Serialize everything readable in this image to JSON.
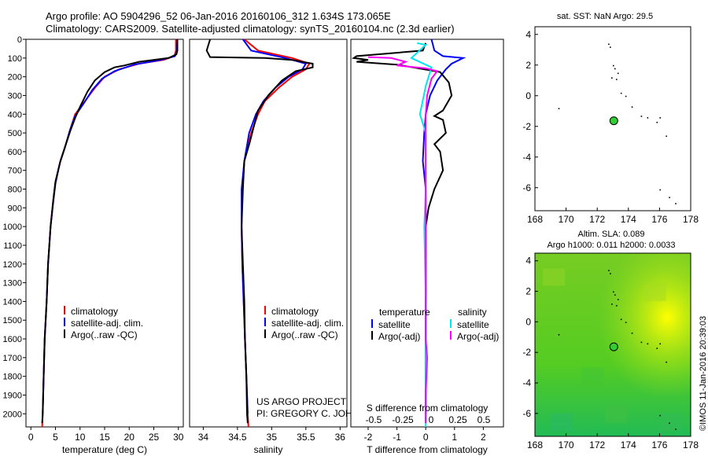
{
  "titles": {
    "line1": "Argo profile: AO 5904296_52 06-Jan-2016 20160106_312 1.634S 173.065E",
    "line2": "Climatology: CARS2009. Satellite-adjusted climatology: synTS_20160104.nc (2.3d earlier)"
  },
  "colors": {
    "clim": "#ff0000",
    "sat": "#0000ff",
    "argo": "#000000",
    "cyan": "#00e5ee",
    "magenta": "#ff00ff",
    "marker": "#33cc33"
  },
  "chart_data": [
    {
      "type": "line",
      "name": "temperature",
      "xlabel": "temperature (deg C)",
      "ylabel": "",
      "xlim": [
        -1,
        31
      ],
      "ylim": [
        2070,
        0
      ],
      "xticks": [
        "0",
        "5",
        "10",
        "15",
        "20",
        "25",
        "30"
      ],
      "yticks": [
        "0",
        "100",
        "200",
        "300",
        "400",
        "500",
        "600",
        "700",
        "800",
        "900",
        "1000",
        "1100",
        "1200",
        "1300",
        "1400",
        "1500",
        "1600",
        "1700",
        "1800",
        "1900",
        "2000"
      ],
      "legend": [
        "climatology",
        "satellite-adj. clim.",
        "Argo(..raw -QC)"
      ],
      "series": [
        {
          "name": "climatology",
          "color": "#ff0000",
          "points": [
            [
              29.5,
              0
            ],
            [
              29.5,
              60
            ],
            [
              29.2,
              90
            ],
            [
              27,
              110
            ],
            [
              22,
              130
            ],
            [
              18,
              160
            ],
            [
              15,
              200
            ],
            [
              13,
              260
            ],
            [
              11,
              330
            ],
            [
              9,
              400
            ],
            [
              8,
              480
            ],
            [
              7,
              570
            ],
            [
              6,
              650
            ],
            [
              5,
              760
            ],
            [
              4.5,
              870
            ],
            [
              4,
              1000
            ],
            [
              3.5,
              1200
            ],
            [
              3.2,
              1400
            ],
            [
              2.8,
              1600
            ],
            [
              2.6,
              1800
            ],
            [
              2.4,
              2000
            ],
            [
              2.3,
              2070
            ]
          ]
        },
        {
          "name": "satellite-adj. clim.",
          "color": "#0000ff",
          "points": [
            [
              29.8,
              0
            ],
            [
              29.7,
              60
            ],
            [
              29.3,
              90
            ],
            [
              26.5,
              110
            ],
            [
              21,
              135
            ],
            [
              17,
              170
            ],
            [
              14.5,
              210
            ],
            [
              12.5,
              270
            ],
            [
              10.8,
              340
            ],
            [
              9,
              410
            ],
            [
              7.9,
              490
            ],
            [
              6.9,
              580
            ],
            [
              5.9,
              660
            ],
            [
              5,
              770
            ],
            [
              4.5,
              880
            ],
            [
              4,
              1000
            ],
            [
              3.5,
              1200
            ],
            [
              3.2,
              1400
            ],
            [
              2.8,
              1600
            ],
            [
              2.6,
              1800
            ],
            [
              2.4,
              2000
            ]
          ]
        },
        {
          "name": "Argo(..raw -QC)",
          "color": "#000000",
          "points": [
            [
              29.8,
              0
            ],
            [
              29.8,
              60
            ],
            [
              29.6,
              80
            ],
            [
              28,
              100
            ],
            [
              22,
              120
            ],
            [
              19,
              140
            ],
            [
              17,
              150
            ],
            [
              15,
              175
            ],
            [
              13,
              220
            ],
            [
              11.5,
              280
            ],
            [
              10,
              360
            ],
            [
              9,
              420
            ],
            [
              8,
              490
            ],
            [
              7,
              570
            ],
            [
              6,
              650
            ],
            [
              5,
              760
            ],
            [
              4.5,
              870
            ],
            [
              4,
              1000
            ],
            [
              3.5,
              1200
            ],
            [
              3.2,
              1400
            ],
            [
              2.8,
              1600
            ],
            [
              2.6,
              1800
            ],
            [
              2.4,
              2000
            ],
            [
              2.3,
              2050
            ]
          ]
        }
      ]
    },
    {
      "type": "line",
      "name": "salinity",
      "xlabel": "salinity",
      "xlim": [
        33.8,
        36.1
      ],
      "ylim": [
        2070,
        0
      ],
      "xticks": [
        "34",
        "34.5",
        "35",
        "35.5",
        "36"
      ],
      "legend": [
        "climatology",
        "satellite-adj. clim.",
        "Argo(..raw -QC)"
      ],
      "annotation": [
        "US ARGO PROJECT",
        "PI: GREGORY C. JOHNSON"
      ],
      "series": [
        {
          "name": "climatology",
          "color": "#ff0000",
          "points": [
            [
              34.6,
              0
            ],
            [
              34.8,
              60
            ],
            [
              35.3,
              100
            ],
            [
              35.55,
              130
            ],
            [
              35.5,
              160
            ],
            [
              35.3,
              200
            ],
            [
              35.1,
              260
            ],
            [
              34.9,
              330
            ],
            [
              34.8,
              400
            ],
            [
              34.7,
              500
            ],
            [
              34.6,
              650
            ],
            [
              34.57,
              800
            ],
            [
              34.56,
              1000
            ],
            [
              34.57,
              1200
            ],
            [
              34.59,
              1400
            ],
            [
              34.61,
              1600
            ],
            [
              34.63,
              1800
            ],
            [
              34.65,
              2000
            ],
            [
              34.66,
              2070
            ]
          ]
        },
        {
          "name": "satellite-adj. clim.",
          "color": "#0000ff",
          "points": [
            [
              34.58,
              0
            ],
            [
              34.7,
              60
            ],
            [
              35.2,
              100
            ],
            [
              35.5,
              130
            ],
            [
              35.45,
              160
            ],
            [
              35.25,
              200
            ],
            [
              35.05,
              260
            ],
            [
              34.88,
              330
            ],
            [
              34.77,
              400
            ],
            [
              34.67,
              500
            ],
            [
              34.6,
              650
            ],
            [
              34.56,
              800
            ],
            [
              34.56,
              1000
            ],
            [
              34.57,
              1200
            ],
            [
              34.59,
              1400
            ],
            [
              34.61,
              1600
            ],
            [
              34.63,
              1800
            ],
            [
              34.65,
              2000
            ]
          ]
        },
        {
          "name": "Argo(..raw -QC)",
          "color": "#000000",
          "points": [
            [
              34.1,
              0
            ],
            [
              34.05,
              60
            ],
            [
              34.1,
              95
            ],
            [
              34.9,
              100
            ],
            [
              35.3,
              110
            ],
            [
              35.6,
              130
            ],
            [
              35.6,
              150
            ],
            [
              35.35,
              170
            ],
            [
              35.15,
              220
            ],
            [
              34.95,
              300
            ],
            [
              34.8,
              380
            ],
            [
              34.75,
              450
            ],
            [
              34.68,
              550
            ],
            [
              34.6,
              650
            ],
            [
              34.58,
              800
            ],
            [
              34.56,
              1000
            ],
            [
              34.58,
              1200
            ],
            [
              34.6,
              1400
            ],
            [
              34.61,
              1600
            ],
            [
              34.63,
              1800
            ],
            [
              34.64,
              2000
            ],
            [
              34.65,
              2050
            ]
          ]
        }
      ]
    },
    {
      "type": "line",
      "name": "differences",
      "xlabel": "T difference from climatology",
      "xlabel_top": "S difference from climatology",
      "xlim": [
        -2.6,
        2.7
      ],
      "ylim": [
        2070,
        0
      ],
      "xticks": [
        "-2",
        "-1",
        "0",
        "1",
        "2"
      ],
      "sticks": [
        "-0.5",
        "-0.25",
        "0",
        "0.25",
        "0.5"
      ],
      "legend_headers": [
        "temperature",
        "salinity"
      ],
      "legend": [
        "satellite",
        "Argo(-adj)",
        "satellite",
        "Argo(-adj)"
      ],
      "series": [
        {
          "name": "T satellite",
          "color": "#0000ff",
          "points": [
            [
              0.2,
              0
            ],
            [
              0.3,
              60
            ],
            [
              0.6,
              90
            ],
            [
              1.3,
              100
            ],
            [
              0.9,
              130
            ],
            [
              0.7,
              160
            ],
            [
              0.4,
              220
            ],
            [
              0.15,
              300
            ],
            [
              0,
              400
            ],
            [
              -0.05,
              500
            ],
            [
              -0.1,
              650
            ],
            [
              0,
              800
            ],
            [
              0,
              1000
            ],
            [
              0,
              1500
            ],
            [
              0,
              2000
            ]
          ]
        },
        {
          "name": "T Argo(-adj)",
          "color": "#000000",
          "points": [
            [
              0,
              20
            ],
            [
              -0.1,
              60
            ],
            [
              -2.4,
              90
            ],
            [
              -2.5,
              100
            ],
            [
              -2,
              110
            ],
            [
              -2.4,
              120
            ],
            [
              -1,
              135
            ],
            [
              0.5,
              175
            ],
            [
              0.8,
              230
            ],
            [
              0.9,
              300
            ],
            [
              0.6,
              380
            ],
            [
              0.3,
              410
            ],
            [
              0.6,
              430
            ],
            [
              0.7,
              500
            ],
            [
              0.3,
              560
            ],
            [
              0.5,
              600
            ],
            [
              0.6,
              700
            ],
            [
              0.3,
              800
            ],
            [
              0.1,
              900
            ],
            [
              0,
              1000
            ],
            [
              0,
              1500
            ],
            [
              0,
              2000
            ],
            [
              0,
              2050
            ]
          ]
        },
        {
          "name": "S satellite",
          "color": "#00e5ee",
          "points": [
            [
              -0.3,
              20
            ],
            [
              0,
              30
            ],
            [
              -0.5,
              100
            ],
            [
              0.2,
              150
            ],
            [
              0,
              250
            ],
            [
              -0.2,
              400
            ],
            [
              0,
              500
            ],
            [
              0,
              800
            ],
            [
              -0.05,
              1000
            ],
            [
              0,
              1400
            ],
            [
              0,
              1700
            ],
            [
              0,
              2000
            ],
            [
              0,
              2070
            ]
          ]
        },
        {
          "name": "S Argo(-adj)",
          "color": "#ff00ff",
          "points": [
            [
              -2,
              95
            ],
            [
              -1.2,
              100
            ],
            [
              -0.7,
              120
            ],
            [
              -1,
              140
            ],
            [
              0,
              155
            ],
            [
              0.4,
              170
            ],
            [
              0.2,
              210
            ],
            [
              0.05,
              300
            ],
            [
              0,
              400
            ],
            [
              0,
              800
            ],
            [
              0,
              1200
            ],
            [
              0,
              1600
            ],
            [
              0.05,
              1700
            ],
            [
              0,
              1900
            ],
            [
              0,
              2050
            ]
          ]
        }
      ]
    },
    {
      "type": "map",
      "name": "sst-map",
      "title": "sat. SST: NaN Argo: 29.5",
      "xlim": [
        168,
        178
      ],
      "ylim": [
        -7.5,
        4.5
      ],
      "xticks": [
        "168",
        "170",
        "172",
        "174",
        "176",
        "178"
      ],
      "yticks": [
        "4",
        "2",
        "0",
        "-2",
        "-4",
        "-6"
      ],
      "marker": [
        173.065,
        -1.634
      ]
    },
    {
      "type": "heatmap",
      "name": "sla-map",
      "title": [
        "Altim. SLA: 0.089",
        "Argo h1000: 0.011 h2000: 0.0033"
      ],
      "xlim": [
        168,
        178
      ],
      "ylim": [
        -7.5,
        4.5
      ],
      "xticks": [
        "168",
        "170",
        "172",
        "174",
        "176",
        "178"
      ],
      "yticks": [
        "4",
        "2",
        "0",
        "-2",
        "-4",
        "-6"
      ],
      "marker": [
        173.065,
        -1.634
      ]
    }
  ],
  "side_stamp": "©IMOS 11-Jan-2016 20:39:03"
}
